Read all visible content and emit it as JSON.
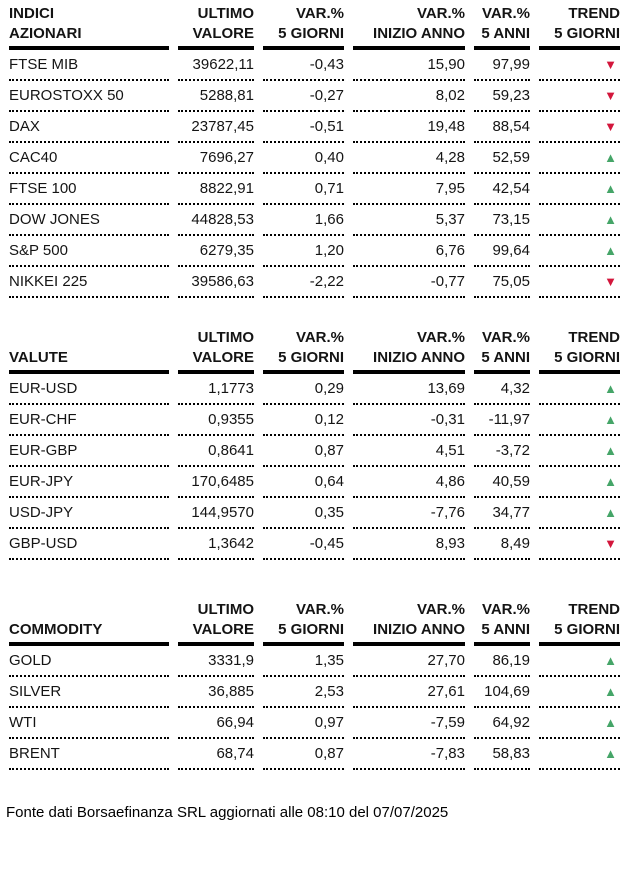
{
  "colors": {
    "up": "#45a568",
    "down": "#d3163c",
    "text": "#141414"
  },
  "icons": {
    "up": "▲",
    "down": "▼"
  },
  "columns": {
    "value": {
      "l1": "ULTIMO",
      "l2": "VALORE"
    },
    "var_5d": {
      "l1": "VAR.%",
      "l2": "5 GIORNI"
    },
    "var_ytd": {
      "l1": "VAR.%",
      "l2": "INIZIO ANNO"
    },
    "var_5y": {
      "l1": "VAR.%",
      "l2": "5 ANNI"
    },
    "trend": {
      "l1": "TREND",
      "l2": "5 GIORNI"
    }
  },
  "chart_data": [
    {
      "type": "table",
      "title_line1": "INDICI",
      "title_line2": "AZIONARI",
      "rows": [
        {
          "name": "FTSE MIB",
          "value": "39622,11",
          "var_5d": "-0,43",
          "var_ytd": "15,90",
          "var_5y": "97,99",
          "trend": "down"
        },
        {
          "name": "EUROSTOXX 50",
          "value": "5288,81",
          "var_5d": "-0,27",
          "var_ytd": "8,02",
          "var_5y": "59,23",
          "trend": "down"
        },
        {
          "name": "DAX",
          "value": "23787,45",
          "var_5d": "-0,51",
          "var_ytd": "19,48",
          "var_5y": "88,54",
          "trend": "down"
        },
        {
          "name": "CAC40",
          "value": "7696,27",
          "var_5d": "0,40",
          "var_ytd": "4,28",
          "var_5y": "52,59",
          "trend": "up"
        },
        {
          "name": "FTSE 100",
          "value": "8822,91",
          "var_5d": "0,71",
          "var_ytd": "7,95",
          "var_5y": "42,54",
          "trend": "up"
        },
        {
          "name": "DOW JONES",
          "value": "44828,53",
          "var_5d": "1,66",
          "var_ytd": "5,37",
          "var_5y": "73,15",
          "trend": "up"
        },
        {
          "name": "S&P 500",
          "value": "6279,35",
          "var_5d": "1,20",
          "var_ytd": "6,76",
          "var_5y": "99,64",
          "trend": "up"
        },
        {
          "name": "NIKKEI 225",
          "value": "39586,63",
          "var_5d": "-2,22",
          "var_ytd": "-0,77",
          "var_5y": "75,05",
          "trend": "down"
        }
      ]
    },
    {
      "type": "table",
      "title_line1": "",
      "title_line2": "VALUTE",
      "rows": [
        {
          "name": "EUR-USD",
          "value": "1,1773",
          "var_5d": "0,29",
          "var_ytd": "13,69",
          "var_5y": "4,32",
          "trend": "up"
        },
        {
          "name": "EUR-CHF",
          "value": "0,9355",
          "var_5d": "0,12",
          "var_ytd": "-0,31",
          "var_5y": "-11,97",
          "trend": "up"
        },
        {
          "name": "EUR-GBP",
          "value": "0,8641",
          "var_5d": "0,87",
          "var_ytd": "4,51",
          "var_5y": "-3,72",
          "trend": "up"
        },
        {
          "name": "EUR-JPY",
          "value": "170,6485",
          "var_5d": "0,64",
          "var_ytd": "4,86",
          "var_5y": "40,59",
          "trend": "up"
        },
        {
          "name": "USD-JPY",
          "value": "144,9570",
          "var_5d": "0,35",
          "var_ytd": "-7,76",
          "var_5y": "34,77",
          "trend": "up"
        },
        {
          "name": "GBP-USD",
          "value": "1,3642",
          "var_5d": "-0,45",
          "var_ytd": "8,93",
          "var_5y": "8,49",
          "trend": "down"
        }
      ]
    },
    {
      "type": "table",
      "title_line1": "",
      "title_line2": "COMMODITY",
      "rows": [
        {
          "name": "GOLD",
          "value": "3331,9",
          "var_5d": "1,35",
          "var_ytd": "27,70",
          "var_5y": "86,19",
          "trend": "up"
        },
        {
          "name": "SILVER",
          "value": "36,885",
          "var_5d": "2,53",
          "var_ytd": "27,61",
          "var_5y": "104,69",
          "trend": "up"
        },
        {
          "name": "WTI",
          "value": "66,94",
          "var_5d": "0,97",
          "var_ytd": "-7,59",
          "var_5y": "64,92",
          "trend": "up"
        },
        {
          "name": "BRENT",
          "value": "68,74",
          "var_5d": "0,87",
          "var_ytd": "-7,83",
          "var_5y": "58,83",
          "trend": "up"
        }
      ]
    }
  ],
  "footer": "Fonte dati Borsaefinanza SRL aggiornati alle 08:10 del 07/07/2025"
}
